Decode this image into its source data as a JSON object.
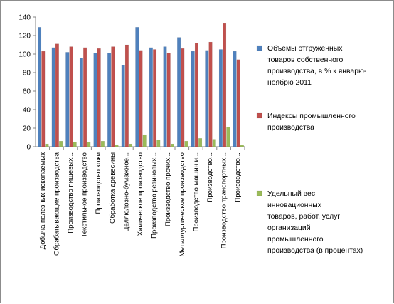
{
  "chart_data": {
    "type": "bar",
    "ylim": [
      0,
      140
    ],
    "yticks": [
      0,
      20,
      40,
      60,
      80,
      100,
      120,
      140
    ],
    "grid": false,
    "legend_position": "right",
    "categories": [
      "Добыча полезных ископаемых",
      "Обрабатывающие производства",
      "Производство пищевых...",
      "Текстильное производство",
      "Производство кожи",
      "Обработка древесины",
      "Целлюлозно-бумажное...",
      "Химическое производство",
      "Производство резиновых...",
      "Производство прочих...",
      "Металлургическое производство",
      "Производство машин и...",
      "Производство...",
      "Производство транспортных...",
      "Производство..."
    ],
    "series": [
      {
        "name": "Объемы отгруженных товаров собственного производства, в % к январю-ноябрю 2011",
        "legend_lines": [
          "Объемы отгруженных",
          "товаров собственного",
          "производства, в % к январю-",
          "ноябрю 2011"
        ],
        "color": "#4f81bd",
        "values": [
          129,
          107,
          102,
          96,
          101,
          101,
          88,
          129,
          107,
          108,
          118,
          103,
          104,
          105,
          103
        ]
      },
      {
        "name": "Индексы промышленного производства",
        "legend_lines": [
          "Индексы промышленного",
          "производства"
        ],
        "color": "#c0504d",
        "values": [
          103,
          111,
          108,
          107,
          106,
          108,
          110,
          104,
          105,
          101,
          106,
          112,
          113,
          133,
          94
        ]
      },
      {
        "name": "Удельный вес инновационных товаров, работ, услуг организаций промышленного производства (в процентах)",
        "legend_lines": [
          "Удельный вес",
          "инновационных",
          "товаров, работ, услуг",
          "организаций",
          "промышленного",
          "производства (в процентах)"
        ],
        "color": "#9bbb59",
        "values": [
          3,
          6,
          5,
          5,
          6,
          2,
          3,
          13,
          7,
          3,
          6,
          9,
          8,
          21,
          2
        ]
      }
    ]
  }
}
